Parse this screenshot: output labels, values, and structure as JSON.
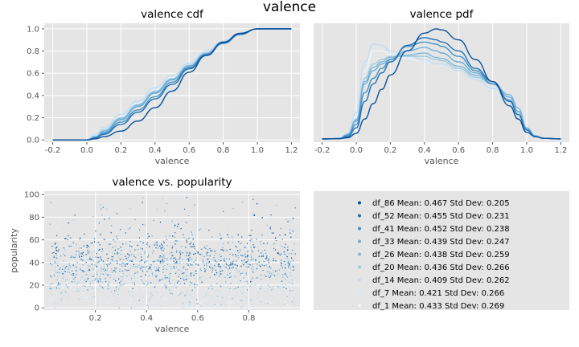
{
  "suptitle": "valence",
  "colors": {
    "panel_bg": "#e5e5e5",
    "grid": "#ffffff",
    "tick": "#555555",
    "text": "#000000",
    "series": [
      "#08519c",
      "#2171b5",
      "#4292c6",
      "#6baed6",
      "#7fb8da",
      "#9ecae1",
      "#c6dbef",
      "#dbe9f6",
      "#eef5fc"
    ]
  },
  "chart_data": [
    {
      "type": "line",
      "title": "valence cdf",
      "xlabel": "valence",
      "ylabel": "",
      "xlim": [
        -0.25,
        1.25
      ],
      "ylim": [
        -0.02,
        1.05
      ],
      "xticks": [
        "-0.2",
        "0.0",
        "0.2",
        "0.4",
        "0.6",
        "0.8",
        "1.0",
        "1.2"
      ],
      "yticks": [
        "0.0",
        "0.2",
        "0.4",
        "0.6",
        "0.8",
        "1.0"
      ],
      "grid": true,
      "x": [
        -0.2,
        -0.1,
        0.0,
        0.05,
        0.1,
        0.2,
        0.3,
        0.4,
        0.5,
        0.6,
        0.7,
        0.8,
        0.9,
        1.0,
        1.1,
        1.2
      ],
      "series": [
        {
          "values": [
            0,
            0,
            0.0,
            0.01,
            0.03,
            0.08,
            0.17,
            0.29,
            0.44,
            0.61,
            0.76,
            0.88,
            0.96,
            1.0,
            1.0,
            1.0
          ]
        },
        {
          "values": [
            0,
            0,
            0.0,
            0.02,
            0.05,
            0.14,
            0.25,
            0.37,
            0.5,
            0.64,
            0.76,
            0.87,
            0.95,
            1.0,
            1.0,
            1.0
          ]
        },
        {
          "values": [
            0,
            0,
            0.0,
            0.02,
            0.06,
            0.16,
            0.27,
            0.39,
            0.52,
            0.65,
            0.77,
            0.87,
            0.95,
            1.0,
            1.0,
            1.0
          ]
        },
        {
          "values": [
            0,
            0,
            0.0,
            0.03,
            0.07,
            0.18,
            0.3,
            0.42,
            0.54,
            0.66,
            0.78,
            0.88,
            0.95,
            1.0,
            1.0,
            1.0
          ]
        },
        {
          "values": [
            0,
            0,
            0.0,
            0.03,
            0.08,
            0.19,
            0.31,
            0.43,
            0.55,
            0.67,
            0.78,
            0.88,
            0.95,
            1.0,
            1.0,
            1.0
          ]
        },
        {
          "values": [
            0,
            0,
            0.0,
            0.03,
            0.09,
            0.2,
            0.32,
            0.44,
            0.55,
            0.67,
            0.78,
            0.88,
            0.95,
            1.0,
            1.0,
            1.0
          ]
        },
        {
          "values": [
            0,
            0,
            0.0,
            0.05,
            0.11,
            0.23,
            0.35,
            0.47,
            0.58,
            0.69,
            0.8,
            0.89,
            0.96,
            1.0,
            1.0,
            1.0
          ]
        },
        {
          "values": [
            0,
            0,
            0.0,
            0.04,
            0.1,
            0.22,
            0.34,
            0.46,
            0.57,
            0.68,
            0.79,
            0.88,
            0.95,
            1.0,
            1.0,
            1.0
          ]
        },
        {
          "values": [
            0,
            0,
            0.0,
            0.04,
            0.1,
            0.21,
            0.33,
            0.45,
            0.56,
            0.67,
            0.78,
            0.88,
            0.95,
            1.0,
            1.0,
            1.0
          ]
        }
      ]
    },
    {
      "type": "line",
      "title": "valence pdf",
      "xlabel": "valence",
      "ylabel": "",
      "xlim": [
        -0.25,
        1.25
      ],
      "ylim": [
        -0.03,
        1.05
      ],
      "xticks": [
        "-0.2",
        "0.0",
        "0.2",
        "0.4",
        "0.6",
        "0.8",
        "1.0",
        "1.2"
      ],
      "yticks": [],
      "grid": true,
      "x": [
        -0.2,
        -0.1,
        -0.05,
        0.0,
        0.05,
        0.1,
        0.15,
        0.2,
        0.3,
        0.4,
        0.47,
        0.5,
        0.6,
        0.7,
        0.8,
        0.9,
        0.95,
        1.0,
        1.05,
        1.1,
        1.2
      ],
      "series": [
        {
          "values": [
            0,
            0.002,
            0.01,
            0.05,
            0.18,
            0.32,
            0.45,
            0.58,
            0.8,
            0.96,
            1.0,
            0.99,
            0.9,
            0.72,
            0.52,
            0.3,
            0.18,
            0.06,
            0.02,
            0.005,
            0
          ]
        },
        {
          "values": [
            0,
            0.002,
            0.02,
            0.1,
            0.34,
            0.5,
            0.6,
            0.7,
            0.85,
            0.92,
            0.9,
            0.88,
            0.8,
            0.64,
            0.52,
            0.34,
            0.22,
            0.08,
            0.02,
            0.005,
            0
          ]
        },
        {
          "values": [
            0,
            0.002,
            0.03,
            0.13,
            0.42,
            0.55,
            0.64,
            0.72,
            0.84,
            0.88,
            0.86,
            0.84,
            0.75,
            0.62,
            0.5,
            0.35,
            0.22,
            0.08,
            0.02,
            0.005,
            0
          ]
        },
        {
          "values": [
            0,
            0.002,
            0.04,
            0.16,
            0.5,
            0.62,
            0.68,
            0.72,
            0.8,
            0.83,
            0.8,
            0.78,
            0.7,
            0.6,
            0.5,
            0.38,
            0.25,
            0.09,
            0.02,
            0.005,
            0
          ]
        },
        {
          "values": [
            0,
            0.002,
            0.04,
            0.17,
            0.52,
            0.65,
            0.7,
            0.74,
            0.76,
            0.78,
            0.74,
            0.73,
            0.66,
            0.58,
            0.5,
            0.4,
            0.28,
            0.1,
            0.03,
            0.005,
            0
          ]
        },
        {
          "values": [
            0,
            0.002,
            0.04,
            0.18,
            0.55,
            0.68,
            0.72,
            0.75,
            0.75,
            0.75,
            0.72,
            0.71,
            0.64,
            0.56,
            0.5,
            0.4,
            0.28,
            0.1,
            0.03,
            0.005,
            0
          ]
        },
        {
          "values": [
            0,
            0.002,
            0.05,
            0.24,
            0.7,
            0.86,
            0.85,
            0.8,
            0.76,
            0.72,
            0.68,
            0.68,
            0.62,
            0.54,
            0.46,
            0.36,
            0.24,
            0.08,
            0.02,
            0.005,
            0
          ]
        },
        {
          "values": [
            0,
            0.002,
            0.05,
            0.22,
            0.68,
            0.84,
            0.83,
            0.78,
            0.74,
            0.7,
            0.68,
            0.67,
            0.62,
            0.55,
            0.48,
            0.38,
            0.26,
            0.09,
            0.02,
            0.005,
            0
          ]
        },
        {
          "values": [
            0,
            0.002,
            0.05,
            0.2,
            0.62,
            0.8,
            0.8,
            0.76,
            0.73,
            0.7,
            0.68,
            0.67,
            0.62,
            0.55,
            0.48,
            0.39,
            0.27,
            0.1,
            0.03,
            0.005,
            0
          ]
        }
      ]
    },
    {
      "type": "scatter",
      "title": "valence vs. popularity",
      "xlabel": "valence",
      "ylabel": "popularity",
      "xlim": [
        0.0,
        1.0
      ],
      "ylim": [
        -2,
        103
      ],
      "xticks": [
        "0.2",
        "0.4",
        "0.6",
        "0.8"
      ],
      "yticks": [
        "0",
        "20",
        "40",
        "60",
        "80",
        "100"
      ],
      "grid": true,
      "x_range": [
        0.02,
        0.98
      ],
      "y_range": [
        0,
        100
      ],
      "density_note": "dense band between popularity 10 and 70 across valence 0.03 to 0.97"
    }
  ],
  "legend": {
    "entries": [
      {
        "name": "df_86",
        "mean": "Mean: 0.467",
        "std": "Std Dev: 0.205"
      },
      {
        "name": "df_52",
        "mean": "Mean: 0.455",
        "std": "Std Dev: 0.231"
      },
      {
        "name": "df_41",
        "mean": "Mean: 0.452",
        "std": "Std Dev: 0.238"
      },
      {
        "name": "df_33",
        "mean": "Mean: 0.439",
        "std": "Std Dev: 0.247"
      },
      {
        "name": "df_26",
        "mean": "Mean: 0.438",
        "std": "Std Dev: 0.259"
      },
      {
        "name": "df_20",
        "mean": "Mean: 0.436",
        "std": "Std Dev: 0.266"
      },
      {
        "name": "df_14",
        "mean": "Mean: 0.409",
        "std": "Std Dev: 0.262"
      },
      {
        "name": "df_7",
        "mean": "Mean: 0.421",
        "std": "Std Dev: 0.266"
      },
      {
        "name": "df_1",
        "mean": "Mean: 0.433",
        "std": "Std Dev: 0.269"
      }
    ]
  }
}
